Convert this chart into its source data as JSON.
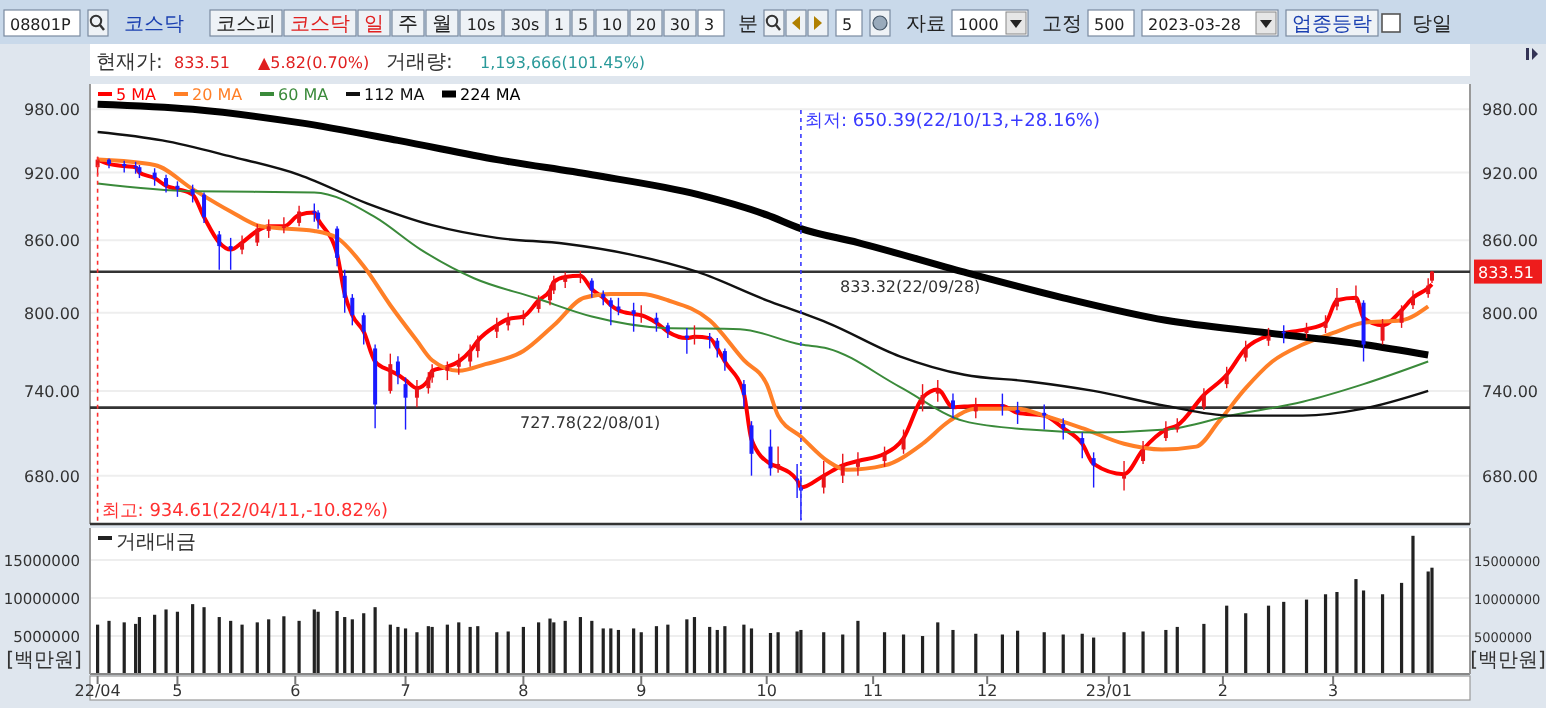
{
  "chart_data": [
    {
      "type": "other",
      "annotations": [
        "08801P",
        "코스닥",
        "코스피",
        "코스닥",
        "일",
        "주",
        "월",
        "10s",
        "30s",
        "1",
        "5",
        "10",
        "20",
        "30",
        "3",
        "분",
        "5",
        "자료",
        "1000",
        "고정",
        "500",
        "2023-03-28",
        "업종등락",
        "당일"
      ]
    },
    {
      "type": "candlestick",
      "x": [
        "2022-04-11",
        "2022-04-14",
        "2022-04-18",
        "2022-04-21",
        "2022-04-22",
        "2022-04-26",
        "2022-04-29",
        "2022-05-02",
        "2022-05-06",
        "2022-05-09",
        "2022-05-13",
        "2022-05-16",
        "2022-05-19",
        "2022-05-23",
        "2022-05-26",
        "2022-05-30",
        "2022-06-03",
        "2022-06-07",
        "2022-06-08",
        "2022-06-13",
        "2022-06-15",
        "2022-06-17",
        "2022-06-20",
        "2022-06-23",
        "2022-06-27",
        "2022-06-29",
        "2022-07-01",
        "2022-07-04",
        "2022-07-07",
        "2022-07-08",
        "2022-07-12",
        "2022-07-15",
        "2022-07-18",
        "2022-07-20",
        "2022-07-25",
        "2022-07-28",
        "2022-08-01",
        "2022-08-05",
        "2022-08-08",
        "2022-08-09",
        "2022-08-12",
        "2022-08-16",
        "2022-08-19",
        "2022-08-22",
        "2022-08-24",
        "2022-08-26",
        "2022-08-30",
        "2022-09-01",
        "2022-09-05",
        "2022-09-08",
        "2022-09-13",
        "2022-09-15",
        "2022-09-19",
        "2022-09-21",
        "2022-09-23",
        "2022-09-28",
        "2022-09-30",
        "2022-10-05",
        "2022-10-07",
        "2022-10-12",
        "2022-10-13",
        "2022-10-19",
        "2022-10-24",
        "2022-10-28",
        "2022-11-04",
        "2022-11-09",
        "2022-11-14",
        "2022-11-18",
        "2022-11-22",
        "2022-11-28",
        "2022-12-05",
        "2022-12-09",
        "2022-12-16",
        "2022-12-21",
        "2022-12-26",
        "2022-12-29",
        "2023-01-06",
        "2023-01-11",
        "2023-01-17",
        "2023-01-20",
        "2023-01-27",
        "2023-02-02",
        "2023-02-07",
        "2023-02-13",
        "2023-02-17",
        "2023-02-23",
        "2023-02-28",
        "2023-03-03",
        "2023-03-08",
        "2023-03-10",
        "2023-03-15",
        "2023-03-20",
        "2023-03-23",
        "2023-03-27",
        "2023-03-28"
      ],
      "ohlc": [
        [
          925,
          934.61,
          918,
          932
        ],
        [
          932,
          933,
          924,
          928
        ],
        [
          928,
          931,
          920,
          926
        ],
        [
          926,
          930,
          919,
          925
        ],
        [
          925,
          927,
          915,
          920
        ],
        [
          920,
          924,
          908,
          915
        ],
        [
          915,
          918,
          902,
          908
        ],
        [
          908,
          912,
          898,
          905
        ],
        [
          905,
          909,
          893,
          900
        ],
        [
          900,
          902,
          875,
          880
        ],
        [
          865,
          868,
          835,
          855
        ],
        [
          855,
          862,
          835,
          852
        ],
        [
          852,
          864,
          848,
          858
        ],
        [
          858,
          874,
          855,
          870
        ],
        [
          868,
          878,
          862,
          872
        ],
        [
          872,
          880,
          866,
          872
        ],
        [
          875,
          890,
          872,
          885
        ],
        [
          885,
          892,
          876,
          884
        ],
        [
          884,
          886,
          870,
          878
        ],
        [
          870,
          872,
          838,
          845
        ],
        [
          830,
          835,
          800,
          812
        ],
        [
          812,
          815,
          790,
          798
        ],
        [
          798,
          800,
          775,
          785
        ],
        [
          772,
          775,
          713,
          730
        ],
        [
          740,
          768,
          738,
          760
        ],
        [
          762,
          766,
          745,
          752
        ],
        [
          745,
          750,
          712,
          735
        ],
        [
          735,
          748,
          728,
          742
        ],
        [
          742,
          754,
          738,
          750
        ],
        [
          750,
          760,
          746,
          755
        ],
        [
          755,
          762,
          748,
          758
        ],
        [
          758,
          768,
          752,
          762
        ],
        [
          762,
          775,
          758,
          770
        ],
        [
          770,
          782,
          765,
          778
        ],
        [
          785,
          796,
          780,
          790
        ],
        [
          790,
          800,
          786,
          795
        ],
        [
          795,
          802,
          790,
          797
        ],
        [
          803,
          814,
          800,
          810
        ],
        [
          810,
          822,
          806,
          818
        ],
        [
          818,
          830,
          815,
          825
        ],
        [
          825,
          833,
          820,
          829
        ],
        [
          829,
          834,
          824,
          830
        ],
        [
          826,
          828,
          812,
          818
        ],
        [
          815,
          818,
          806,
          812
        ],
        [
          810,
          812,
          790,
          805
        ],
        [
          805,
          812,
          798,
          802
        ],
        [
          802,
          808,
          785,
          799
        ],
        [
          798,
          806,
          792,
          798
        ],
        [
          796,
          800,
          785,
          792
        ],
        [
          790,
          792,
          780,
          785
        ],
        [
          782,
          788,
          768,
          780
        ],
        [
          780,
          790,
          775,
          781
        ],
        [
          781,
          784,
          772,
          780
        ],
        [
          778,
          780,
          765,
          772
        ],
        [
          770,
          772,
          755,
          762
        ],
        [
          745,
          748,
          728,
          737
        ],
        [
          715,
          718,
          680,
          695
        ],
        [
          700,
          712,
          680,
          685
        ],
        [
          685,
          700,
          682,
          688
        ],
        [
          678,
          688,
          665,
          677
        ],
        [
          672,
          680,
          650.39,
          670
        ],
        [
          672,
          690,
          668,
          680
        ],
        [
          680,
          695,
          675,
          687
        ],
        [
          686,
          696,
          680,
          690
        ],
        [
          690,
          700,
          686,
          695
        ],
        [
          698,
          712,
          695,
          706
        ],
        [
          730,
          745,
          725,
          737
        ],
        [
          738,
          748,
          732,
          741
        ],
        [
          733,
          738,
          720,
          727
        ],
        [
          725,
          735,
          720,
          729
        ],
        [
          730,
          738,
          722,
          729
        ],
        [
          726,
          732,
          716,
          724
        ],
        [
          724,
          730,
          712,
          722
        ],
        [
          716,
          720,
          705,
          713
        ],
        [
          706,
          710,
          692,
          702
        ],
        [
          692,
          696,
          672,
          687
        ],
        [
          678,
          690,
          670,
          680
        ],
        [
          690,
          704,
          688,
          698
        ],
        [
          706,
          718,
          704,
          713
        ],
        [
          712,
          720,
          710,
          715
        ],
        [
          728,
          742,
          726,
          737
        ],
        [
          745,
          758,
          742,
          752
        ],
        [
          765,
          778,
          762,
          772
        ],
        [
          778,
          788,
          774,
          782
        ],
        [
          785,
          790,
          776,
          784
        ],
        [
          784,
          792,
          780,
          787
        ],
        [
          788,
          798,
          784,
          792
        ],
        [
          805,
          820,
          802,
          812
        ],
        [
          812,
          822,
          808,
          812
        ],
        [
          808,
          810,
          762,
          775
        ],
        [
          778,
          795,
          775,
          790
        ],
        [
          792,
          806,
          788,
          802
        ],
        [
          806,
          818,
          803,
          812
        ],
        [
          815,
          828,
          812,
          822
        ],
        [
          826,
          834,
          824,
          833.51
        ]
      ],
      "series": [
        {
          "name": "5 MA",
          "type": "line",
          "color": "#ff0000",
          "values": [
            932,
            928,
            926,
            925,
            920,
            915,
            908,
            905,
            900,
            880,
            858,
            852,
            858,
            868,
            872,
            872,
            882,
            884,
            878,
            848,
            815,
            798,
            785,
            762,
            755,
            752,
            748,
            742,
            748,
            755,
            758,
            762,
            770,
            778,
            790,
            795,
            797,
            810,
            818,
            825,
            829,
            830,
            819,
            812,
            806,
            802,
            799,
            798,
            792,
            785,
            780,
            781,
            780,
            772,
            762,
            738,
            705,
            688,
            686,
            677,
            672,
            680,
            687,
            690,
            695,
            706,
            735,
            741,
            728,
            729,
            729,
            724,
            722,
            713,
            702,
            688,
            681,
            698,
            712,
            715,
            737,
            752,
            772,
            782,
            784,
            787,
            792,
            810,
            812,
            796,
            790,
            802,
            812,
            820,
            823
          ]
        },
        {
          "name": "20 MA",
          "type": "line",
          "color": "#ff7f27",
          "x": [
            "2022-04-11",
            "2022-04-26",
            "2022-05-06",
            "2022-05-16",
            "2022-05-24",
            "2022-06-07",
            "2022-06-13",
            "2022-06-20",
            "2022-06-27",
            "2022-07-04",
            "2022-07-08",
            "2022-07-15",
            "2022-07-22",
            "2022-08-01",
            "2022-08-09",
            "2022-08-17",
            "2022-08-24",
            "2022-09-01",
            "2022-09-08",
            "2022-09-19",
            "2022-09-28",
            "2022-10-04",
            "2022-10-07",
            "2022-10-13",
            "2022-10-20",
            "2022-10-25",
            "2022-11-04",
            "2022-11-14",
            "2022-11-21",
            "2022-11-28",
            "2022-12-09",
            "2022-12-16",
            "2022-12-26",
            "2023-01-06",
            "2023-01-16",
            "2023-01-25",
            "2023-01-31",
            "2023-02-07",
            "2023-02-14",
            "2023-02-22",
            "2023-03-02",
            "2023-03-10",
            "2023-03-20",
            "2023-03-27"
          ],
          "values": [
            932,
            927,
            905,
            885,
            872,
            868,
            862,
            838,
            806,
            778,
            763,
            755,
            760,
            770,
            790,
            812,
            815,
            815,
            810,
            794,
            763,
            745,
            722,
            707,
            690,
            684,
            687,
            702,
            718,
            727,
            727,
            722,
            713,
            702,
            698,
            700,
            718,
            742,
            762,
            775,
            784,
            792,
            794,
            805
          ]
        },
        {
          "name": "60 MA",
          "type": "line",
          "color": "#3a8a3a",
          "x": [
            "2022-04-11",
            "2022-05-06",
            "2022-06-07",
            "2022-06-23",
            "2022-07-05",
            "2022-07-19",
            "2022-08-04",
            "2022-08-19",
            "2022-09-07",
            "2022-09-27",
            "2022-10-13",
            "2022-10-20",
            "2022-11-08",
            "2022-11-25",
            "2022-12-12",
            "2022-12-29",
            "2023-01-17",
            "2023-02-03",
            "2023-02-22",
            "2023-03-10",
            "2023-03-27"
          ],
          "values": [
            910,
            903,
            902,
            880,
            852,
            828,
            812,
            797,
            788,
            787,
            775,
            772,
            743,
            718,
            712,
            710,
            712,
            722,
            732,
            745,
            762
          ]
        },
        {
          "name": "112 MA",
          "type": "line",
          "color": "#111111",
          "x": [
            "2022-04-11",
            "2022-04-28",
            "2022-05-16",
            "2022-06-03",
            "2022-06-21",
            "2022-07-08",
            "2022-07-25",
            "2022-08-12",
            "2022-08-29",
            "2022-09-16",
            "2022-10-04",
            "2022-10-13",
            "2022-10-20",
            "2022-11-08",
            "2022-11-25",
            "2022-12-12",
            "2022-12-29",
            "2023-01-17",
            "2023-02-03",
            "2023-02-22",
            "2023-03-10",
            "2023-03-27"
          ],
          "values": [
            958,
            950,
            935,
            918,
            892,
            873,
            862,
            857,
            848,
            833,
            810,
            800,
            792,
            766,
            752,
            747,
            740,
            729,
            722,
            722,
            727,
            740
          ]
        },
        {
          "name": "224 MA",
          "type": "line",
          "color": "#000000",
          "x": [
            "2022-04-11",
            "2022-05-06",
            "2022-06-03",
            "2022-06-29",
            "2022-07-25",
            "2022-08-19",
            "2022-09-16",
            "2022-10-04",
            "2022-10-13",
            "2022-10-28",
            "2022-11-25",
            "2022-12-21",
            "2023-01-17",
            "2023-02-13",
            "2023-03-10",
            "2023-03-27"
          ],
          "values": [
            985,
            980,
            967,
            950,
            932,
            918,
            900,
            882,
            870,
            858,
            833,
            812,
            794,
            784,
            775,
            767
          ]
        }
      ],
      "annotations": [
        "현재가:",
        "833.51",
        "▲5.82(0.70%)",
        "거래량:",
        "1,193,666(101.45%)",
        {
          "text": "최고: 934.61(22/04/11,-10.82%)",
          "x": "2022-04-11",
          "y": 934.61
        },
        {
          "text": "최저: 650.39(22/10/13,+28.16%)",
          "x": "2022-10-13",
          "y": 650.39
        },
        {
          "text": "833.51",
          "x": "2023-03-28",
          "y": 833.51
        }
      ],
      "ref_lines": [
        {
          "axis": "y",
          "value": 833.32,
          "label": "833.32(22/09/28)"
        },
        {
          "axis": "y",
          "value": 727.78,
          "label": "727.78(22/08/01)"
        }
      ],
      "xlim": [
        "2022-04-09",
        "2023-04-07"
      ],
      "ylim": [
        648,
        1005
      ],
      "yticks": [
        {
          "value": 680,
          "label": "680.00"
        },
        {
          "value": 740,
          "label": "740.00"
        },
        {
          "value": 800,
          "label": "800.00"
        },
        {
          "value": 860,
          "label": "860.00"
        },
        {
          "value": 920,
          "label": "920.00"
        },
        {
          "value": 980,
          "label": "980.00"
        }
      ],
      "log": "y",
      "grid": "y",
      "legend": "top left",
      "tick_labels": "y"
    },
    {
      "type": "bar",
      "x": [
        "2022-04-11",
        "2022-04-14",
        "2022-04-18",
        "2022-04-21",
        "2022-04-22",
        "2022-04-26",
        "2022-04-29",
        "2022-05-02",
        "2022-05-06",
        "2022-05-09",
        "2022-05-13",
        "2022-05-16",
        "2022-05-19",
        "2022-05-23",
        "2022-05-26",
        "2022-05-30",
        "2022-06-03",
        "2022-06-07",
        "2022-06-08",
        "2022-06-13",
        "2022-06-15",
        "2022-06-17",
        "2022-06-20",
        "2022-06-23",
        "2022-06-27",
        "2022-06-29",
        "2022-07-01",
        "2022-07-04",
        "2022-07-07",
        "2022-07-08",
        "2022-07-12",
        "2022-07-15",
        "2022-07-18",
        "2022-07-20",
        "2022-07-25",
        "2022-07-28",
        "2022-08-01",
        "2022-08-05",
        "2022-08-08",
        "2022-08-09",
        "2022-08-12",
        "2022-08-16",
        "2022-08-19",
        "2022-08-22",
        "2022-08-24",
        "2022-08-26",
        "2022-08-30",
        "2022-09-01",
        "2022-09-05",
        "2022-09-08",
        "2022-09-13",
        "2022-09-15",
        "2022-09-19",
        "2022-09-21",
        "2022-09-23",
        "2022-09-28",
        "2022-09-30",
        "2022-10-05",
        "2022-10-07",
        "2022-10-12",
        "2022-10-13",
        "2022-10-19",
        "2022-10-24",
        "2022-10-28",
        "2022-11-04",
        "2022-11-09",
        "2022-11-14",
        "2022-11-18",
        "2022-11-22",
        "2022-11-28",
        "2022-12-05",
        "2022-12-09",
        "2022-12-16",
        "2022-12-21",
        "2022-12-26",
        "2022-12-29",
        "2023-01-06",
        "2023-01-11",
        "2023-01-17",
        "2023-01-20",
        "2023-01-27",
        "2023-02-02",
        "2023-02-07",
        "2023-02-13",
        "2023-02-17",
        "2023-02-23",
        "2023-02-28",
        "2023-03-03",
        "2023-03-08",
        "2023-03-10",
        "2023-03-15",
        "2023-03-20",
        "2023-03-23",
        "2023-03-27",
        "2023-03-28"
      ],
      "series": [
        {
          "name": "거래대금",
          "color": "#222222",
          "values": [
            6500000,
            7000000,
            6800000,
            6600000,
            7500000,
            7800000,
            8500000,
            8200000,
            9200000,
            8800000,
            7500000,
            7000000,
            6500000,
            6800000,
            7200000,
            7600000,
            7000000,
            8500000,
            8200000,
            8300000,
            7500000,
            7200000,
            8000000,
            8800000,
            6500000,
            6200000,
            6000000,
            5500000,
            6300000,
            6200000,
            6500000,
            6800000,
            6200000,
            6300000,
            5500000,
            5600000,
            6200000,
            6800000,
            7300000,
            6800000,
            7000000,
            7500000,
            7000000,
            6000000,
            6000000,
            5800000,
            6000000,
            5500000,
            6300000,
            6500000,
            7200000,
            7500000,
            6200000,
            5800000,
            6300000,
            6500000,
            6000000,
            5400000,
            5500000,
            5600000,
            5800000,
            5500000,
            5200000,
            7000000,
            5500000,
            5200000,
            5000000,
            6800000,
            5800000,
            5300000,
            5200000,
            5700000,
            5500000,
            5200000,
            5300000,
            4800000,
            5500000,
            5600000,
            5800000,
            6200000,
            6600000,
            9000000,
            8000000,
            9000000,
            9500000,
            9800000,
            10500000,
            10800000,
            12500000,
            11000000,
            10500000,
            12000000,
            18200000,
            13500000,
            14000000
          ]
        }
      ],
      "xlim": [
        "2022-04-09",
        "2023-04-07"
      ],
      "xticks": [
        {
          "value": "2022-04-11",
          "label": "22/04"
        },
        {
          "value": "2022-05-02",
          "label": "5"
        },
        {
          "value": "2022-06-02",
          "label": "6"
        },
        {
          "value": "2022-07-01",
          "label": "7"
        },
        {
          "value": "2022-08-01",
          "label": "8"
        },
        {
          "value": "2022-09-01",
          "label": "9"
        },
        {
          "value": "2022-10-04",
          "label": "10"
        },
        {
          "value": "2022-11-01",
          "label": "11"
        },
        {
          "value": "2022-12-01",
          "label": "12"
        },
        {
          "value": "2023-01-02",
          "label": "23/01"
        },
        {
          "value": "2023-02-01",
          "label": "2"
        },
        {
          "value": "2023-03-02",
          "label": "3"
        }
      ],
      "ylim": [
        0,
        18700000
      ],
      "yticks": [
        5000000,
        10000000,
        15000000
      ],
      "y2lim": [
        0,
        18700000
      ],
      "y2ticks": [
        5000000,
        10000000,
        15000000
      ],
      "ylabel": "[백만원]",
      "y2label": "[백만원]",
      "grid": "y",
      "legend": "top left"
    }
  ]
}
